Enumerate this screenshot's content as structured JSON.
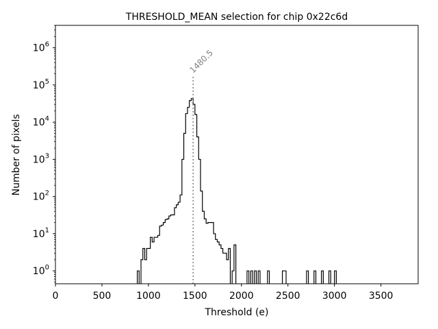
{
  "chart_data": {
    "type": "histogram",
    "title": "THRESHOLD_MEAN selection for chip 0x22c6d",
    "xlabel": "Threshold (e)",
    "ylabel": "Number of pixels",
    "xlim": [
      0,
      3900
    ],
    "ylim": [
      0.45,
      4000000
    ],
    "yscale": "log",
    "grid": false,
    "xticks": [
      0,
      500,
      1000,
      1500,
      2000,
      2500,
      3000,
      3500
    ],
    "xtick_labels": [
      "0",
      "500",
      "1000",
      "1500",
      "2000",
      "2500",
      "3000",
      "3500"
    ],
    "yticks": [
      1,
      10,
      100,
      1000,
      10000,
      100000,
      1000000
    ],
    "ytick_labels": [
      {
        "base": "10",
        "exp": "0"
      },
      {
        "base": "10",
        "exp": "1"
      },
      {
        "base": "10",
        "exp": "2"
      },
      {
        "base": "10",
        "exp": "3"
      },
      {
        "base": "10",
        "exp": "4"
      },
      {
        "base": "10",
        "exp": "5"
      },
      {
        "base": "10",
        "exp": "6"
      }
    ],
    "bin_width": 20,
    "bins": [
      {
        "x": 880,
        "y": 1
      },
      {
        "x": 920,
        "y": 2
      },
      {
        "x": 940,
        "y": 4
      },
      {
        "x": 960,
        "y": 2
      },
      {
        "x": 980,
        "y": 4
      },
      {
        "x": 1000,
        "y": 4
      },
      {
        "x": 1020,
        "y": 8
      },
      {
        "x": 1040,
        "y": 6
      },
      {
        "x": 1060,
        "y": 8
      },
      {
        "x": 1080,
        "y": 8
      },
      {
        "x": 1100,
        "y": 9
      },
      {
        "x": 1120,
        "y": 16
      },
      {
        "x": 1140,
        "y": 17
      },
      {
        "x": 1160,
        "y": 20
      },
      {
        "x": 1180,
        "y": 24
      },
      {
        "x": 1200,
        "y": 25
      },
      {
        "x": 1220,
        "y": 30
      },
      {
        "x": 1240,
        "y": 32
      },
      {
        "x": 1260,
        "y": 32
      },
      {
        "x": 1280,
        "y": 50
      },
      {
        "x": 1300,
        "y": 60
      },
      {
        "x": 1320,
        "y": 70
      },
      {
        "x": 1340,
        "y": 110
      },
      {
        "x": 1360,
        "y": 1000
      },
      {
        "x": 1380,
        "y": 5000
      },
      {
        "x": 1400,
        "y": 17000
      },
      {
        "x": 1420,
        "y": 25000
      },
      {
        "x": 1440,
        "y": 38000
      },
      {
        "x": 1460,
        "y": 43000
      },
      {
        "x": 1480,
        "y": 30000
      },
      {
        "x": 1500,
        "y": 16000
      },
      {
        "x": 1520,
        "y": 4000
      },
      {
        "x": 1540,
        "y": 1000
      },
      {
        "x": 1560,
        "y": 140
      },
      {
        "x": 1580,
        "y": 40
      },
      {
        "x": 1600,
        "y": 25
      },
      {
        "x": 1620,
        "y": 19
      },
      {
        "x": 1640,
        "y": 20
      },
      {
        "x": 1660,
        "y": 20
      },
      {
        "x": 1680,
        "y": 20
      },
      {
        "x": 1700,
        "y": 10
      },
      {
        "x": 1720,
        "y": 7
      },
      {
        "x": 1740,
        "y": 6
      },
      {
        "x": 1760,
        "y": 5
      },
      {
        "x": 1780,
        "y": 4
      },
      {
        "x": 1800,
        "y": 3
      },
      {
        "x": 1820,
        "y": 3
      },
      {
        "x": 1840,
        "y": 2
      },
      {
        "x": 1860,
        "y": 4
      },
      {
        "x": 1900,
        "y": 1
      },
      {
        "x": 1920,
        "y": 5
      },
      {
        "x": 2060,
        "y": 1
      },
      {
        "x": 2100,
        "y": 1
      },
      {
        "x": 2140,
        "y": 1
      },
      {
        "x": 2180,
        "y": 1
      },
      {
        "x": 2280,
        "y": 1
      },
      {
        "x": 2440,
        "y": 1
      },
      {
        "x": 2460,
        "y": 1
      },
      {
        "x": 2700,
        "y": 1
      },
      {
        "x": 2780,
        "y": 1
      },
      {
        "x": 2860,
        "y": 1
      },
      {
        "x": 2940,
        "y": 1
      },
      {
        "x": 3000,
        "y": 1
      }
    ],
    "vline": {
      "x": 1480.5,
      "label": "1480.5",
      "color": "#808080",
      "style": "dotted",
      "ymax": 170000
    },
    "line_color": "#000000"
  }
}
